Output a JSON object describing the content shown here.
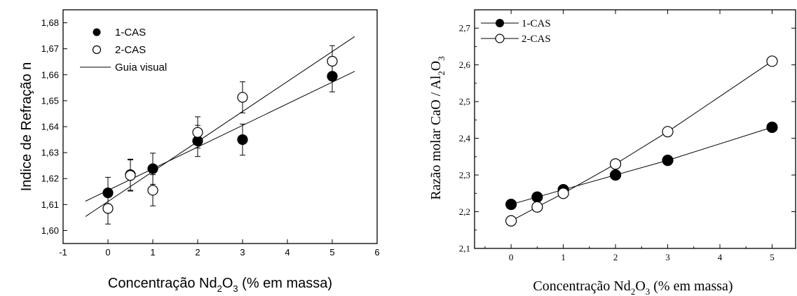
{
  "chart_data": [
    {
      "type": "scatter",
      "xlabel": "Concentração Nd₂O₃ (% em massa)",
      "xlabel_parts": {
        "pre": "Concentração Nd",
        "sub1": "2",
        "mid": "O",
        "sub2": "3",
        "post": " (% em massa)"
      },
      "ylabel": "Indice de Refração n",
      "xlim": [
        -1,
        6
      ],
      "ylim": [
        1.595,
        1.685
      ],
      "xticks": [
        -1,
        0,
        1,
        2,
        3,
        4,
        5,
        6
      ],
      "xtick_labels": [
        "-1",
        "0",
        "1",
        "2",
        "3",
        "4",
        "5",
        "6"
      ],
      "yticks": [
        1.6,
        1.61,
        1.62,
        1.63,
        1.64,
        1.65,
        1.66,
        1.67,
        1.68
      ],
      "ytick_labels": [
        "1,60",
        "1,61",
        "1,62",
        "1,63",
        "1,64",
        "1,65",
        "1,66",
        "1,67",
        "1,68"
      ],
      "grid": false,
      "legend_position": "top-left",
      "series": [
        {
          "name": "1-CAS",
          "marker": "filled-circle",
          "x": [
            0,
            0.5,
            1,
            2,
            3,
            5
          ],
          "y": [
            1.6145,
            1.6215,
            1.6238,
            1.6345,
            1.635,
            1.6594
          ],
          "err": [
            0.006,
            0.006,
            0.006,
            0.006,
            0.006,
            0.006
          ]
        },
        {
          "name": "2-CAS",
          "marker": "open-circle",
          "x": [
            0,
            0.5,
            1,
            2,
            3,
            5
          ],
          "y": [
            1.6085,
            1.6212,
            1.6155,
            1.6378,
            1.6513,
            1.6652
          ],
          "err": [
            0.006,
            0.006,
            0.006,
            0.006,
            0.006,
            0.006
          ]
        }
      ],
      "fit_lines": [
        {
          "name": "Guia visual",
          "x": [
            -0.5,
            5.5
          ],
          "y": [
            1.6113,
            1.6613
          ]
        },
        {
          "x": [
            -0.5,
            5.5
          ],
          "y": [
            1.6054,
            1.6747
          ]
        }
      ]
    },
    {
      "type": "line",
      "xlabel": "Concentração Nd₂O₃ (% em massa)",
      "xlabel_parts": {
        "pre": "Concentração Nd",
        "sub1": "2",
        "mid": "O",
        "sub2": "3",
        "post": " (% em massa)"
      },
      "ylabel": "Razão molar CaO / Al₂O₃",
      "ylabel_parts": {
        "pre": "Razão molar CaO / Al",
        "sub1": "2",
        "mid": "O",
        "sub2": "3"
      },
      "xlim": [
        -0.7,
        5.45
      ],
      "ylim": [
        2.1,
        2.75
      ],
      "xticks": [
        0,
        1,
        2,
        3,
        4,
        5
      ],
      "xtick_labels": [
        "0",
        "1",
        "2",
        "3",
        "4",
        "5"
      ],
      "yticks": [
        2.1,
        2.2,
        2.3,
        2.4,
        2.5,
        2.6,
        2.7
      ],
      "ytick_labels": [
        "2,1",
        "2,2",
        "2,3",
        "2,4",
        "2,5",
        "2,6",
        "2,7"
      ],
      "grid": false,
      "legend_position": "top-left",
      "series": [
        {
          "name": "1-CAS",
          "marker": "filled-circle",
          "x": [
            0,
            0.5,
            1,
            2,
            3,
            5
          ],
          "y": [
            2.22,
            2.24,
            2.26,
            2.3,
            2.34,
            2.43
          ]
        },
        {
          "name": "2-CAS",
          "marker": "open-circle",
          "x": [
            0,
            0.5,
            1,
            2,
            3,
            5
          ],
          "y": [
            2.175,
            2.213,
            2.25,
            2.33,
            2.418,
            2.61
          ]
        }
      ]
    }
  ]
}
